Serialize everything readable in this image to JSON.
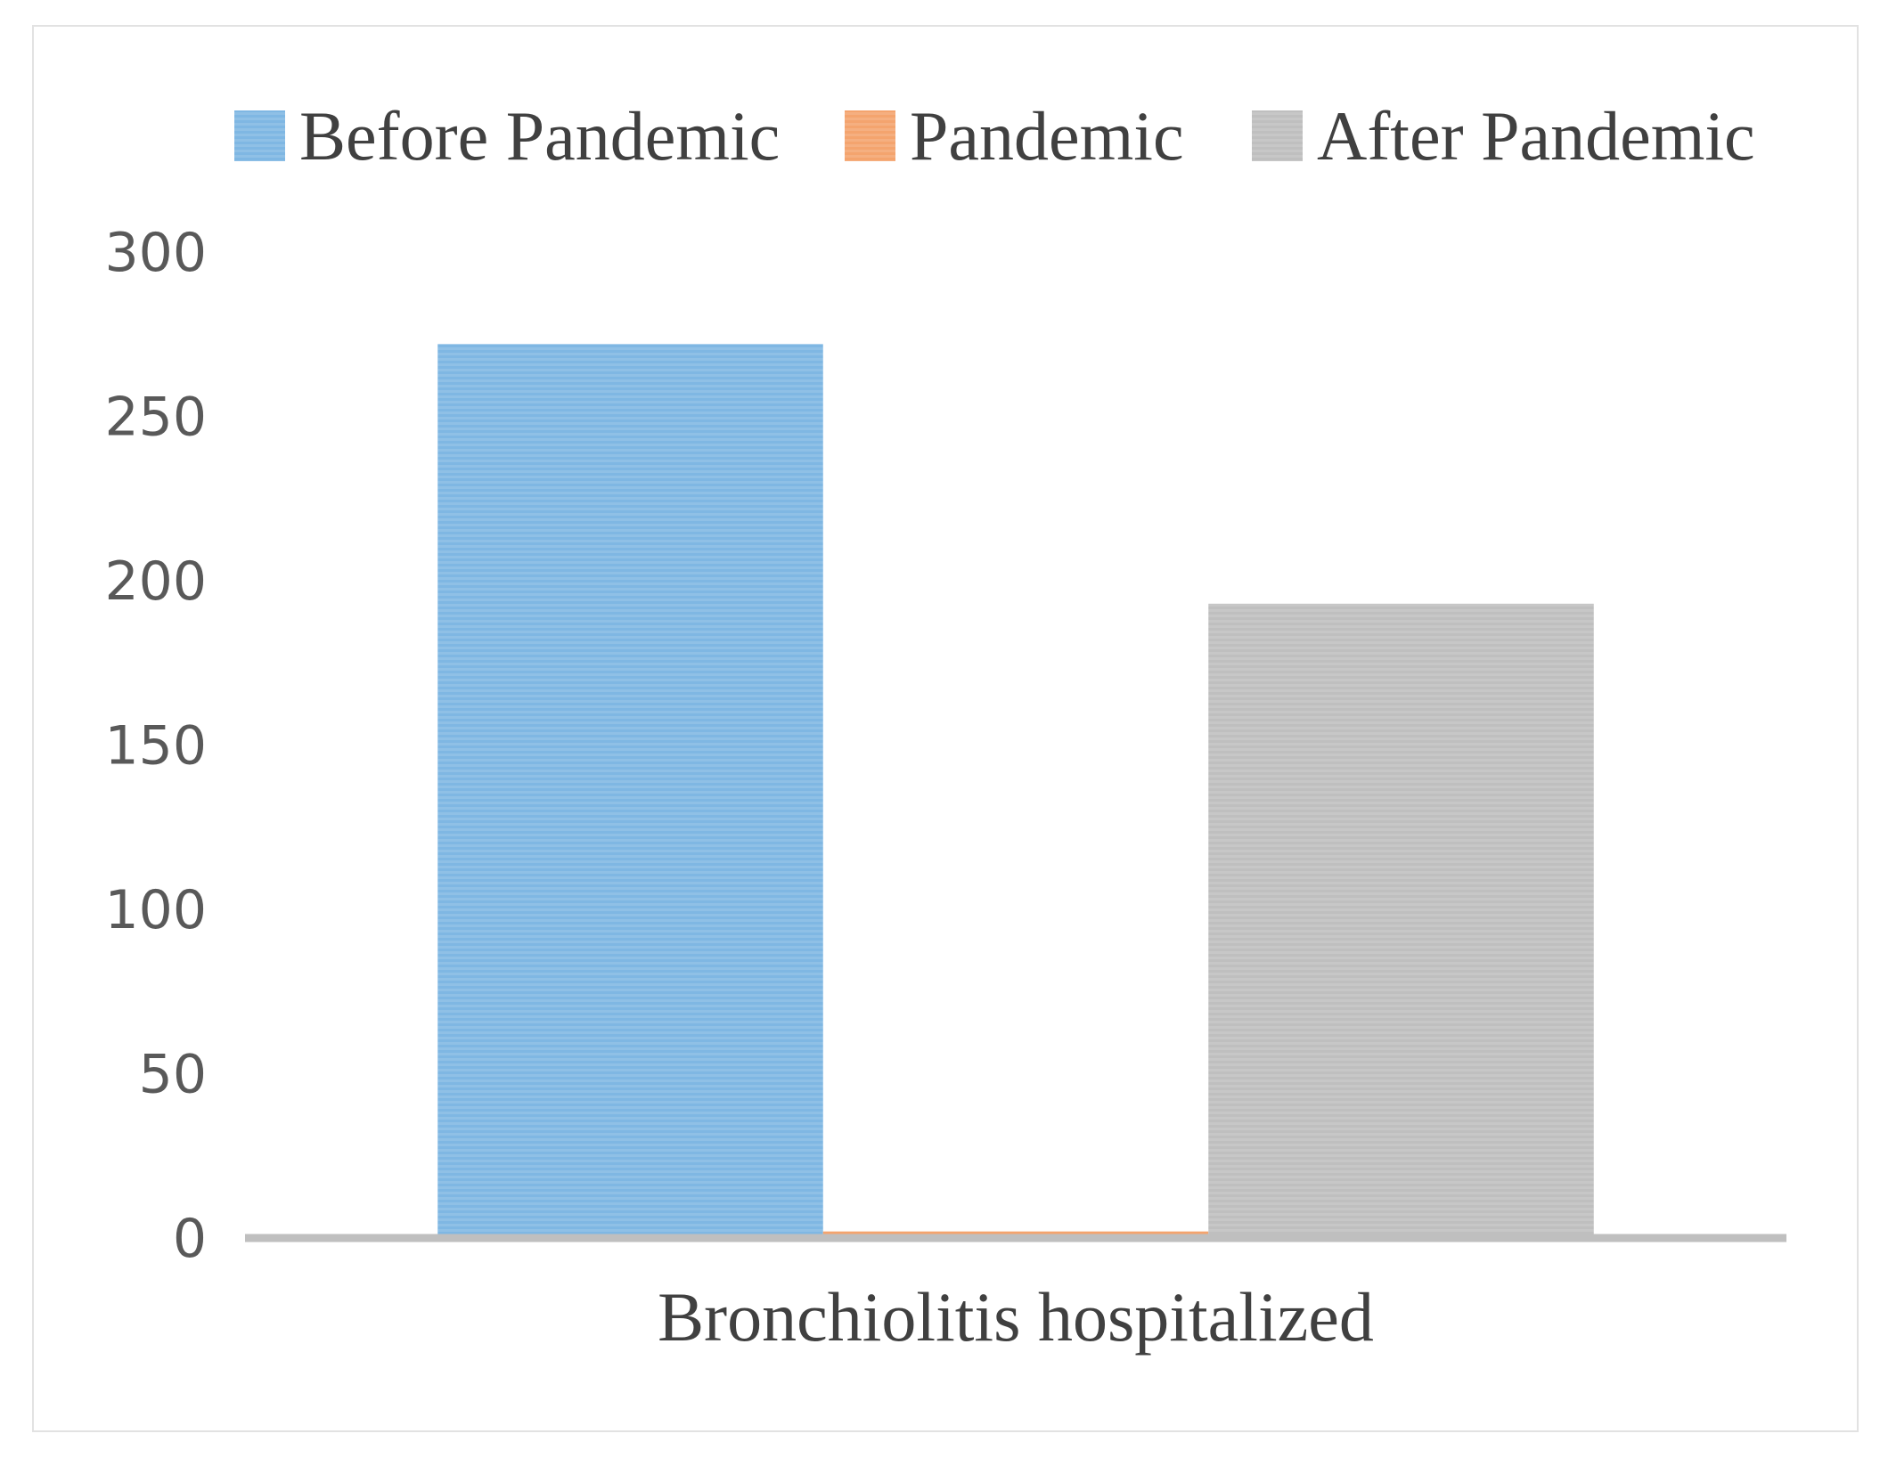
{
  "chart_data": {
    "type": "bar",
    "categories": [
      "Bronchiolitis hospitalized"
    ],
    "series": [
      {
        "name": "Before Pandemic",
        "values": [
          272
        ],
        "color": "#7fb7e3"
      },
      {
        "name": "Pandemic",
        "values": [
          2
        ],
        "color": "#f4a46e"
      },
      {
        "name": "After Pandemic",
        "values": [
          193
        ],
        "color": "#bfbfbf"
      }
    ],
    "ylim": [
      0,
      300
    ],
    "yticks": [
      "0",
      "50",
      "100",
      "150",
      "200",
      "250",
      "300"
    ],
    "legend_position": "top",
    "grid": false,
    "axis_color": "#bfbfbf"
  }
}
